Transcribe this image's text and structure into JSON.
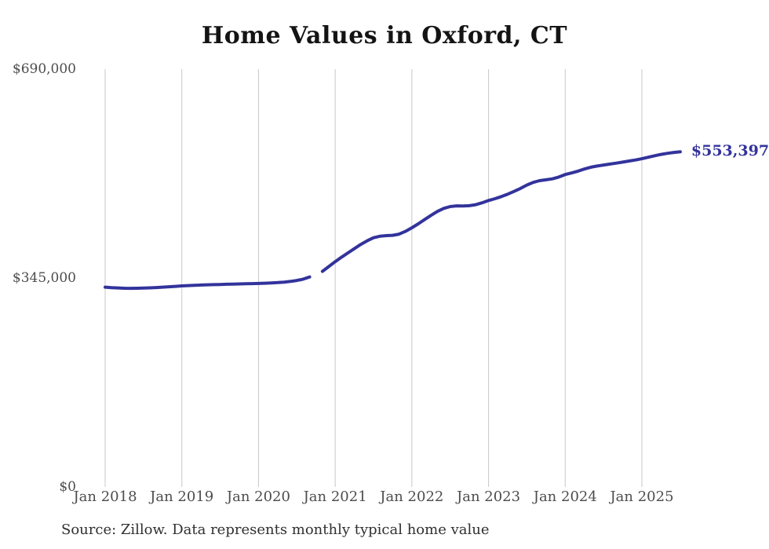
{
  "chart_data": {
    "type": "line",
    "title": "Home Values in Oxford, CT",
    "source": "Source: Zillow. Data represents monthly typical home value",
    "end_value_label": "$553,397",
    "latest_value": 553397,
    "unit": "USD",
    "x_start_month": "2018-01",
    "x_end_month": "2025-07",
    "months_per_x_tick": 12,
    "ylim": [
      0,
      690000
    ],
    "grid": "vertical-only",
    "legend": "none",
    "y_ticks": [
      {
        "value": 690000,
        "label": "$690,000"
      },
      {
        "value": 345000,
        "label": "$345,000"
      },
      {
        "value": 0,
        "label": "$0"
      }
    ],
    "x_ticks": [
      "Jan 2018",
      "Jan 2019",
      "Jan 2020",
      "Jan 2021",
      "Jan 2022",
      "Jan 2023",
      "Jan 2024",
      "Jan 2025"
    ],
    "series": [
      {
        "name": "Monthly typical home value",
        "start": "2018-01",
        "interval": "month",
        "gap_note_month": "2020-10",
        "values": [
          330000,
          329200,
          328600,
          328200,
          328000,
          328100,
          328400,
          328800,
          329300,
          329900,
          330600,
          331300,
          332000,
          332500,
          333000,
          333400,
          333800,
          334100,
          334400,
          334700,
          335000,
          335300,
          335600,
          335800,
          336000,
          336400,
          336900,
          337500,
          338300,
          339400,
          341000,
          343200,
          346800,
          null,
          356000,
          364000,
          372000,
          379500,
          386500,
          393500,
          400500,
          406500,
          411500,
          414000,
          415000,
          415500,
          417500,
          422000,
          428000,
          434500,
          441500,
          448500,
          455000,
          460000,
          463000,
          464200,
          464000,
          464400,
          466200,
          469300,
          473000,
          476000,
          479500,
          483500,
          488000,
          493000,
          498500,
          503000,
          505800,
          507200,
          508800,
          511800,
          516000,
          518500,
          521500,
          525000,
          528000,
          530000,
          531600,
          533200,
          534800,
          536400,
          538200,
          540000,
          542000,
          544500,
          547000,
          549200,
          551000,
          552400,
          553397
        ]
      }
    ]
  },
  "colors": {
    "line": "#33339c",
    "end_label": "#33339c",
    "grid": "#c9c9c9",
    "axis_text": "#4d4d4d",
    "title_text": "#141414",
    "source_text": "#303030",
    "background": "#ffffff"
  }
}
